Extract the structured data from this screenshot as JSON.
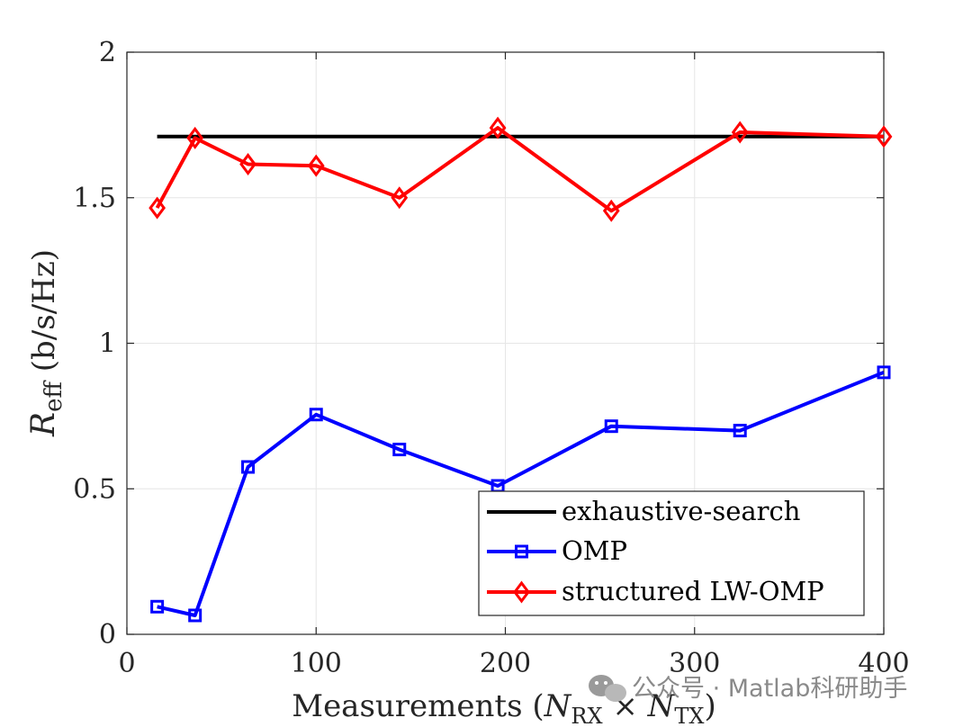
{
  "chart_data": {
    "type": "line",
    "xlabel": {
      "prefix": "Measurements (",
      "n1": "N",
      "sub1": "RX",
      "times": " × ",
      "n2": "N",
      "sub2": "TX",
      "suffix": ")"
    },
    "ylabel": {
      "r": "R",
      "sub": "eff",
      "unit": " (b/s/Hz)"
    },
    "xlim": [
      0,
      400
    ],
    "ylim": [
      0,
      2
    ],
    "x_ticks": [
      0,
      100,
      200,
      300,
      400
    ],
    "x_tick_labels": [
      "0",
      "100",
      "200",
      "300",
      "400"
    ],
    "y_ticks": [
      0,
      0.5,
      1,
      1.5,
      2
    ],
    "y_tick_labels": [
      "0",
      "0.5",
      "1",
      "1.5",
      "2"
    ],
    "grid": true,
    "legend_position": "bottom-right",
    "series": [
      {
        "name": "exhaustive-search",
        "color": "#000000",
        "marker": "none",
        "x": [
          16,
          400
        ],
        "values": [
          1.71,
          1.71
        ]
      },
      {
        "name": "OMP",
        "color": "#0000ff",
        "marker": "square",
        "x": [
          16,
          36,
          64,
          100,
          144,
          196,
          256,
          324,
          400
        ],
        "values": [
          0.095,
          0.065,
          0.575,
          0.755,
          0.635,
          0.51,
          0.715,
          0.7,
          0.9
        ]
      },
      {
        "name": "structured LW-OMP",
        "color": "#ff0000",
        "marker": "diamond",
        "x": [
          16,
          36,
          64,
          100,
          144,
          196,
          256,
          324,
          400
        ],
        "values": [
          1.465,
          1.705,
          1.615,
          1.61,
          1.5,
          1.74,
          1.455,
          1.725,
          1.71
        ]
      }
    ]
  },
  "watermark": {
    "text": "公众号 · Matlab科研助手",
    "icon": "wechat-icon"
  }
}
